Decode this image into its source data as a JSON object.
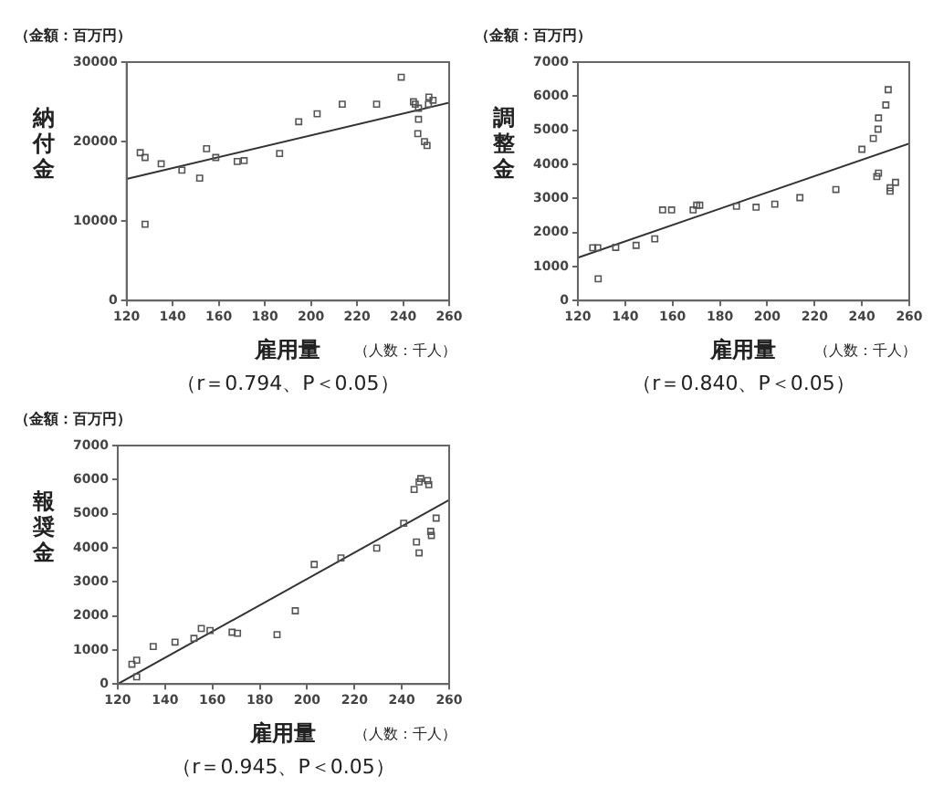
{
  "chart_data": [
    {
      "type": "scatter",
      "ylabel": "納付金",
      "xlabel": "雇用量",
      "annotations": [
        "（金額：百万円）",
        "（人数：千人）",
        "（r＝0.794、P＜0.05）"
      ],
      "xlim": [
        120,
        260
      ],
      "xticks": [
        120,
        140,
        160,
        180,
        200,
        220,
        240,
        260
      ],
      "ylim": [
        0,
        30000
      ],
      "yticks": [
        0,
        10000,
        20000,
        30000
      ],
      "grid": false,
      "marker": "square",
      "series": [
        {
          "color": "#555555",
          "x": [
            125.9,
            128,
            128,
            135,
            144,
            151.7,
            154.7,
            158.7,
            168,
            171,
            186.4,
            194.7,
            202.7,
            213.6,
            228.5,
            239.2,
            244.5,
            245.3,
            246.7,
            246.7,
            246.4,
            249.3,
            250.4,
            251.2,
            253,
            251
          ],
          "values": [
            18600,
            18000,
            9600,
            17200,
            16400,
            15400,
            19100,
            18000,
            17500,
            17600,
            18500,
            22500,
            23500,
            24700,
            24700,
            28100,
            25000,
            24700,
            24200,
            22800,
            21000,
            20000,
            19500,
            25600,
            25200,
            24700
          ]
        },
        {
          "type": "line",
          "marker": "none",
          "color": "#333333",
          "x": [
            120,
            260
          ],
          "values": [
            15300,
            24900
          ]
        }
      ]
    },
    {
      "type": "scatter",
      "ylabel": "調整金",
      "xlabel": "雇用量",
      "annotations": [
        "（金額：百万円）",
        "（人数：千人）",
        "（r＝0.840、P＜0.05）"
      ],
      "xlim": [
        120,
        260
      ],
      "xticks": [
        120,
        140,
        160,
        180,
        200,
        220,
        240,
        260
      ],
      "ylim": [
        0,
        7000
      ],
      "yticks": [
        0,
        1000,
        2000,
        3000,
        4000,
        5000,
        6000,
        7000
      ],
      "grid": false,
      "marker": "square",
      "series": [
        {
          "color": "#555555",
          "x": [
            126.3,
            128.4,
            128.6,
            136,
            144.6,
            152.5,
            155.8,
            159.6,
            168.7,
            170.2,
            171.5,
            187,
            195.3,
            203.2,
            213.8,
            229,
            240,
            244.8,
            246.8,
            247,
            250.1,
            251.1,
            246.3,
            247,
            251.9,
            251.9,
            254.2
          ],
          "values": [
            1550,
            1550,
            640,
            1560,
            1620,
            1810,
            2660,
            2660,
            2660,
            2800,
            2800,
            2770,
            2740,
            2830,
            3020,
            3260,
            4440,
            4760,
            5030,
            5360,
            5740,
            6190,
            3640,
            3740,
            3210,
            3310,
            3470
          ]
        },
        {
          "type": "line",
          "marker": "none",
          "color": "#333333",
          "x": [
            120,
            260
          ],
          "values": [
            1260,
            4610
          ]
        }
      ]
    },
    {
      "type": "scatter",
      "ylabel": "報奨金",
      "xlabel": "雇用量",
      "annotations": [
        "（金額：百万円）",
        "（人数：千人）",
        "（r＝0.945、P＜0.05）"
      ],
      "xlim": [
        120,
        260
      ],
      "xticks": [
        120,
        140,
        160,
        180,
        200,
        220,
        240,
        260
      ],
      "ylim": [
        0,
        7000
      ],
      "yticks": [
        0,
        1000,
        2000,
        3000,
        4000,
        5000,
        6000,
        7000
      ],
      "grid": false,
      "marker": "square",
      "series": [
        {
          "color": "#555555",
          "x": [
            126,
            128,
            128,
            135,
            144.2,
            152.2,
            155.3,
            159,
            168.3,
            170.6,
            187.3,
            195,
            203,
            214.3,
            229.4,
            240.8,
            245.2,
            247.3,
            248,
            250.9,
            251.4,
            246.2,
            247.3,
            252.2,
            252.5,
            254.5
          ],
          "values": [
            580,
            700,
            210,
            1100,
            1230,
            1340,
            1630,
            1570,
            1520,
            1490,
            1450,
            2150,
            3510,
            3700,
            3990,
            4720,
            5710,
            5930,
            6030,
            5970,
            5850,
            4170,
            3850,
            4480,
            4360,
            4870
          ]
        },
        {
          "type": "line",
          "marker": "none",
          "color": "#333333",
          "x": [
            120,
            260
          ],
          "values": [
            0,
            5400
          ]
        }
      ]
    }
  ]
}
